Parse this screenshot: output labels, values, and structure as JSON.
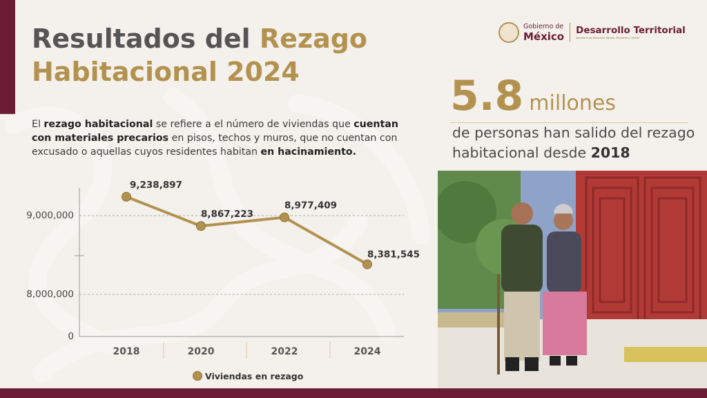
{
  "title": {
    "part1": "Resultados del ",
    "part2": "Rezago",
    "part3": "Habitacional 2024"
  },
  "description": {
    "t1": "El ",
    "b1": "rezago habitacional",
    "t2": " se refiere a el número de viviendas que ",
    "b2": "cuentan con materiales precarios",
    "t3": " en pisos, techos y muros, que no cuentan con excusado o aquellas cuyos residentes habitan ",
    "b3": "en hacinamiento."
  },
  "logo": {
    "gobierno": "Gobierno de",
    "mexico": "México",
    "dependencia": "Desarrollo Territorial",
    "secretaria": "Secretaría de Desarrollo Agrario, Territorial y Urbano"
  },
  "highlight": {
    "number": "5.8",
    "unit": "millones",
    "text1": "de personas han salido del rezago habitacional desde ",
    "year": "2018"
  },
  "colors": {
    "gold": "#b39250",
    "burgundy": "#6b1d35",
    "dark_gray": "#555555",
    "background": "#f4f1ec"
  },
  "chart_data": {
    "type": "line",
    "categories": [
      "2018",
      "2020",
      "2022",
      "2024"
    ],
    "series": [
      {
        "name": "Viviendas en rezago",
        "values": [
          9238897,
          8867223,
          8977409,
          8381545
        ]
      }
    ],
    "data_labels": [
      "9,238,897",
      "8,867,223",
      "8,977,409",
      "8,381,545"
    ],
    "y_ticks": [
      "9,000,000",
      "8,000,000",
      "0"
    ],
    "y_axis_break": true,
    "grid": "dashed horizontal",
    "legend": "bottom"
  }
}
